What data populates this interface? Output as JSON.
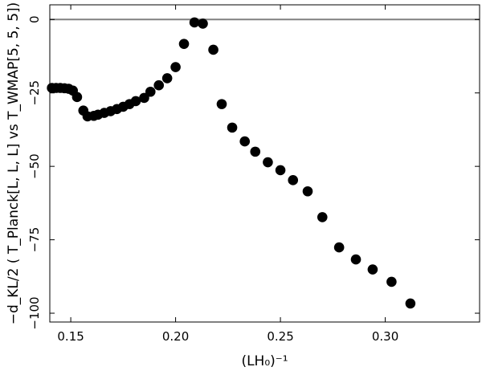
{
  "chart_data": {
    "type": "scatter",
    "xlabel": "(LH₀)⁻¹",
    "ylabel": "−d_KL/2 ( T_Planck[L, L, L] vs T_WMAP[5, 5, 5])",
    "xlim": [
      0.14,
      0.345
    ],
    "ylim": [
      -103,
      5
    ],
    "xticks": [
      0.15,
      0.2,
      0.25,
      0.3
    ],
    "xtick_labels": [
      "0.15",
      "0.20",
      "0.25",
      "0.30"
    ],
    "yticks": [
      0,
      -25,
      -50,
      -75,
      -100
    ],
    "ytick_labels": [
      "0",
      "−25",
      "−50",
      "−75",
      "−100"
    ],
    "zero_line": true,
    "grid": false,
    "marker_color": "#000000",
    "zero_line_color": "#808080",
    "series": [
      {
        "x": [
          0.141,
          0.143,
          0.145,
          0.147,
          0.149,
          0.151,
          0.153,
          0.156,
          0.158,
          0.161,
          0.163,
          0.166,
          0.169,
          0.172,
          0.175,
          0.178,
          0.181,
          0.185,
          0.188,
          0.192,
          0.196,
          0.2,
          0.204,
          0.209,
          0.213,
          0.218,
          0.222,
          0.227,
          0.233,
          0.238,
          0.244,
          0.25,
          0.256,
          0.263,
          0.27,
          0.278,
          0.286,
          0.294,
          0.303,
          0.312
        ],
        "y": [
          -23.3,
          -23.3,
          -23.3,
          -23.4,
          -23.6,
          -24.2,
          -26.4,
          -31.0,
          -33.0,
          -32.8,
          -32.4,
          -31.8,
          -31.2,
          -30.5,
          -29.7,
          -28.8,
          -27.8,
          -26.7,
          -24.6,
          -22.4,
          -20.0,
          -16.2,
          -8.3,
          -1.0,
          -1.4,
          -10.3,
          -28.8,
          -36.8,
          -41.5,
          -45.0,
          -48.6,
          -51.3,
          -54.7,
          -58.5,
          -67.3,
          -77.6,
          -81.7,
          -85.1,
          -89.3,
          -96.7
        ]
      }
    ]
  }
}
